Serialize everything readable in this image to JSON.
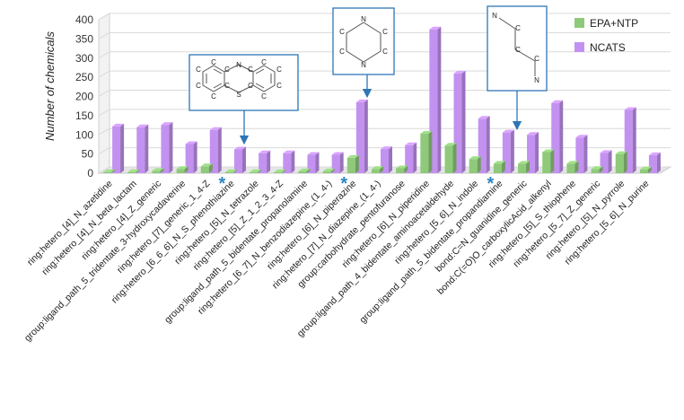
{
  "chart_data": {
    "type": "bar",
    "ylabel": "Number of chemicals",
    "ylim": [
      0,
      400
    ],
    "yticks": [
      0,
      50,
      100,
      150,
      200,
      250,
      300,
      350,
      400
    ],
    "grid": true,
    "legend": "top-right",
    "categories": [
      "ring:hetero_[4]_N_azetidine",
      "ring:hetero_[4]_N_beta_lactam",
      "ring:hetero_[4]_Z_generic",
      "group:ligand_path_5_tridentate_3-hydroxycadaverine",
      "ring:hetero_[7]_generic_1_4-Z",
      "ring:hetero_[6_6_6]_N_S_phenothiazine",
      "ring:hetero_[5]_N_tetrazole",
      "ring:hetero_[5]_Z_1_2_3_4-Z",
      "group:ligand_path_5_bidentate_propanolamine",
      "ring:hetero_[6_7]_N_benzodiazepine_(1_4-)",
      "ring:hetero_[6]_N_piperazine",
      "ring:hetero_[7]_N_diazepine_(1_4-)",
      "group:carbohydrate_pentofuranose",
      "ring:hetero_[6]_N_piperidine",
      "group:ligand_path_4_bidentate_aminoacetaldehyde",
      "ring:hetero_[5_6]_N_indole",
      "group:ligand_path_5_bidentate_propandiamine",
      "bond:C=N_guanidine_generic",
      "bond:C(=O)O_carboxylicAcid_alkenyl",
      "ring:hetero_[5]_S_thiophene",
      "ring:hetero_[5_7]_Z_generic",
      "ring:hetero_[5]_N_pyrrole",
      "ring:hetero_[5_6]_N_purine"
    ],
    "series": [
      {
        "name": "EPA+NTP",
        "color": "#8fc97a",
        "values": [
          3,
          3,
          6,
          11,
          18,
          3,
          3,
          3,
          5,
          5,
          40,
          11,
          13,
          103,
          72,
          37,
          25,
          25,
          55,
          25,
          11,
          50,
          10
        ]
      },
      {
        "name": "NCATS",
        "color": "#c392f0",
        "values": [
          122,
          120,
          126,
          76,
          113,
          62,
          52,
          52,
          48,
          48,
          185,
          63,
          73,
          375,
          260,
          142,
          106,
          100,
          183,
          93,
          53,
          165,
          47
        ]
      }
    ],
    "highlight_marker": "*",
    "highlighted_categories": [
      5,
      10,
      16
    ]
  },
  "structures": [
    {
      "atoms": [
        {
          "label": "N"
        },
        {
          "label": "S"
        },
        {
          "label": "C"
        },
        {
          "label": "C"
        },
        {
          "label": "C"
        },
        {
          "label": "C"
        },
        {
          "label": "C"
        },
        {
          "label": "C"
        },
        {
          "label": "C"
        },
        {
          "label": "C"
        },
        {
          "label": "C"
        },
        {
          "label": "C"
        },
        {
          "label": "C"
        },
        {
          "label": "C"
        }
      ]
    },
    {
      "atoms": [
        {
          "label": "N"
        },
        {
          "label": "C"
        },
        {
          "label": "C"
        },
        {
          "label": "N"
        },
        {
          "label": "C"
        },
        {
          "label": "C"
        }
      ]
    },
    {
      "atoms": [
        {
          "label": "N"
        },
        {
          "label": "C"
        },
        {
          "label": "C"
        },
        {
          "label": "C"
        },
        {
          "label": "N"
        }
      ]
    }
  ]
}
